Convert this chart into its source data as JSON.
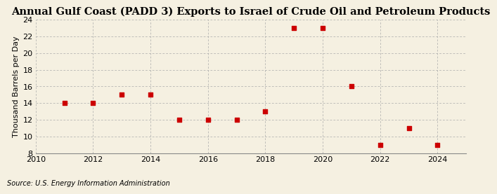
{
  "title": "Annual Gulf Coast (PADD 3) Exports to Israel of Crude Oil and Petroleum Products",
  "ylabel": "Thousand Barrels per Day",
  "source": "Source: U.S. Energy Information Administration",
  "years": [
    2011,
    2012,
    2013,
    2014,
    2015,
    2016,
    2017,
    2018,
    2019,
    2020,
    2021,
    2022,
    2023,
    2024
  ],
  "values": [
    14,
    14,
    15,
    15,
    12,
    12,
    12,
    13,
    23,
    23,
    16,
    9,
    11,
    9
  ],
  "xlim": [
    2010,
    2025
  ],
  "ylim": [
    8,
    24
  ],
  "yticks": [
    8,
    10,
    12,
    14,
    16,
    18,
    20,
    22,
    24
  ],
  "xticks": [
    2010,
    2012,
    2014,
    2016,
    2018,
    2020,
    2022,
    2024
  ],
  "marker_color": "#cc0000",
  "marker_size": 22,
  "background_color": "#f5f0e1",
  "grid_color": "#aaaaaa",
  "title_fontsize": 10.5,
  "label_fontsize": 8,
  "tick_fontsize": 8,
  "source_fontsize": 7
}
